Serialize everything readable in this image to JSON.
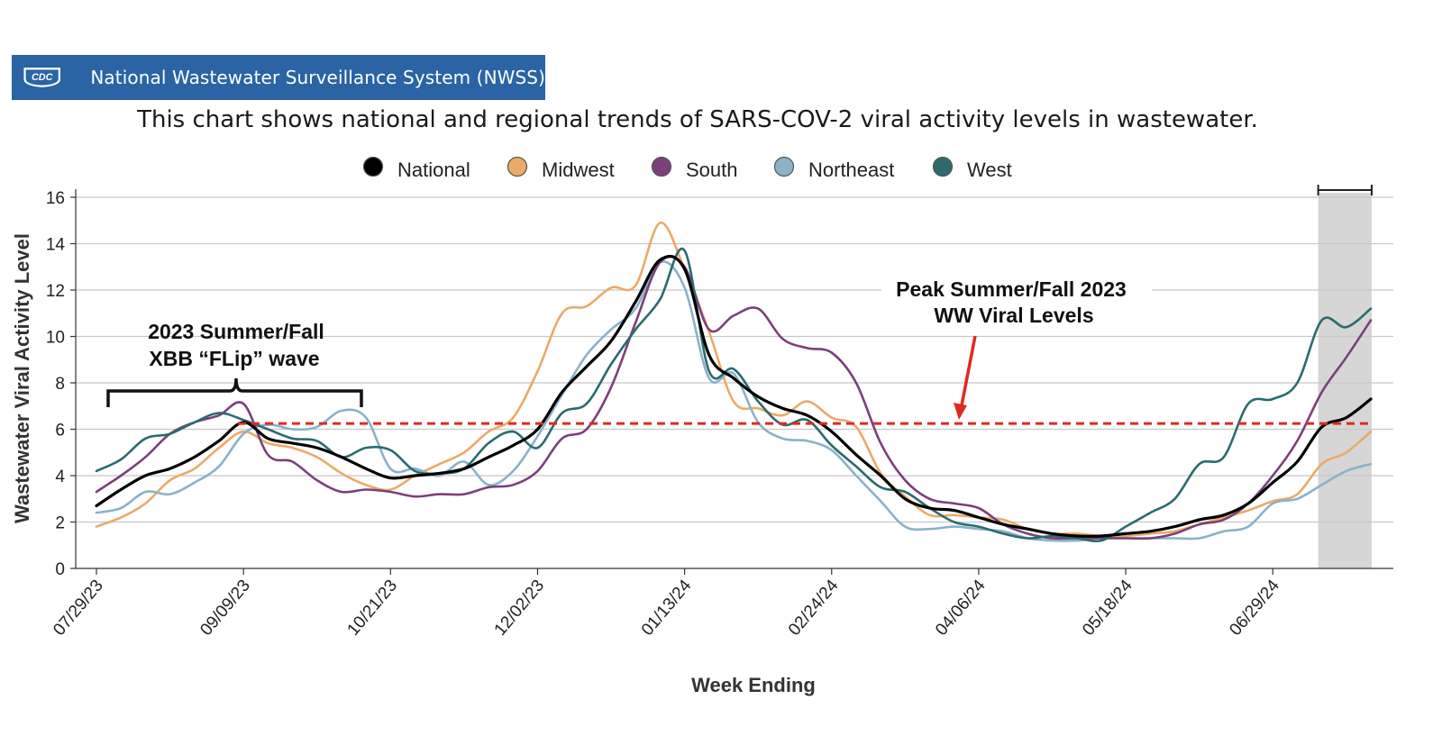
{
  "header": {
    "logo_text": "CDC",
    "banner_title": "National Wastewater Surveillance System (NWSS)",
    "subtitle": "This chart shows national and regional trends of SARS-COV-2 viral activity levels in wastewater."
  },
  "colors": {
    "banner": "#2a64a4",
    "threshold": "#e02a20",
    "shade": "#d6d6d6"
  },
  "chart_data": {
    "type": "line",
    "xlabel": "Week Ending",
    "ylabel": "Wastewater Viral Activity Level",
    "ylim": [
      0,
      16
    ],
    "yticks": [
      0,
      2,
      4,
      6,
      8,
      10,
      12,
      14,
      16
    ],
    "x_tick_labels": [
      "07/29/23",
      "09/09/23",
      "10/21/23",
      "12/02/23",
      "01/13/24",
      "02/24/24",
      "04/06/24",
      "05/18/24",
      "06/29/24"
    ],
    "x_dates": [
      "07/29/23",
      "08/05/23",
      "08/12/23",
      "08/19/23",
      "08/26/23",
      "09/02/23",
      "09/09/23",
      "09/16/23",
      "09/23/23",
      "09/30/23",
      "10/07/23",
      "10/14/23",
      "10/21/23",
      "10/28/23",
      "11/04/23",
      "11/11/23",
      "11/18/23",
      "11/25/23",
      "12/02/23",
      "12/09/23",
      "12/16/23",
      "12/23/23",
      "12/30/23",
      "01/06/24",
      "01/13/24",
      "01/20/24",
      "01/27/24",
      "02/03/24",
      "02/10/24",
      "02/17/24",
      "02/24/24",
      "03/02/24",
      "03/09/24",
      "03/16/24",
      "03/23/24",
      "03/30/24",
      "04/06/24",
      "04/13/24",
      "04/20/24",
      "04/27/24",
      "05/04/24",
      "05/11/24",
      "05/18/24",
      "05/25/24",
      "06/01/24",
      "06/08/24",
      "06/15/24",
      "06/22/24",
      "06/29/24",
      "07/06/24",
      "07/13/24",
      "07/20/24",
      "07/27/24"
    ],
    "grid": true,
    "legend_position": "top-center",
    "series": [
      {
        "name": "National",
        "color": "#000000",
        "values": [
          2.7,
          3.4,
          4.0,
          4.3,
          4.8,
          5.5,
          6.3,
          5.6,
          5.4,
          5.2,
          4.8,
          4.3,
          3.9,
          4.0,
          4.1,
          4.3,
          4.8,
          5.3,
          6.0,
          7.6,
          8.7,
          9.8,
          11.5,
          13.3,
          12.9,
          9.2,
          8.2,
          7.4,
          6.9,
          6.6,
          5.9,
          4.9,
          4.0,
          3.0,
          2.6,
          2.5,
          2.2,
          1.9,
          1.7,
          1.5,
          1.4,
          1.4,
          1.5,
          1.6,
          1.8,
          2.1,
          2.3,
          2.8,
          3.7,
          4.6,
          6.1,
          6.5,
          7.3
        ]
      },
      {
        "name": "Midwest",
        "color": "#eca968",
        "values": [
          1.8,
          2.2,
          2.8,
          3.8,
          4.3,
          5.2,
          5.9,
          5.4,
          5.2,
          4.8,
          4.1,
          3.6,
          3.4,
          4.0,
          4.5,
          5.0,
          5.9,
          6.5,
          8.5,
          11.0,
          11.3,
          12.1,
          12.2,
          14.9,
          12.9,
          10.2,
          7.2,
          6.9,
          6.6,
          7.2,
          6.5,
          6.1,
          4.1,
          3.1,
          2.3,
          2.3,
          2.2,
          2.1,
          1.7,
          1.5,
          1.5,
          1.4,
          1.4,
          1.5,
          1.6,
          1.9,
          2.2,
          2.5,
          2.9,
          3.2,
          4.5,
          5.0,
          5.9
        ]
      },
      {
        "name": "South",
        "color": "#7b4079",
        "values": [
          3.3,
          4.0,
          4.8,
          5.8,
          6.3,
          6.6,
          7.1,
          4.9,
          4.6,
          3.8,
          3.3,
          3.4,
          3.3,
          3.1,
          3.2,
          3.2,
          3.5,
          3.6,
          4.2,
          5.6,
          6.0,
          7.8,
          10.6,
          13.2,
          13.0,
          10.3,
          10.9,
          11.2,
          9.9,
          9.5,
          9.3,
          8.0,
          5.4,
          3.8,
          3.0,
          2.8,
          2.6,
          1.9,
          1.5,
          1.3,
          1.3,
          1.3,
          1.3,
          1.3,
          1.5,
          1.9,
          2.1,
          2.8,
          4.0,
          5.5,
          7.6,
          9.1,
          10.7
        ]
      },
      {
        "name": "Northeast",
        "color": "#8ab2c8",
        "values": [
          2.4,
          2.6,
          3.3,
          3.2,
          3.7,
          4.4,
          5.8,
          6.2,
          6.0,
          6.1,
          6.8,
          6.5,
          4.3,
          4.3,
          4.0,
          4.6,
          3.6,
          4.2,
          5.7,
          7.5,
          9.2,
          10.3,
          11.2,
          13.2,
          12.1,
          8.2,
          8.4,
          6.3,
          5.6,
          5.5,
          5.1,
          4.0,
          2.9,
          1.8,
          1.7,
          1.8,
          1.7,
          1.6,
          1.3,
          1.2,
          1.2,
          1.3,
          1.3,
          1.3,
          1.3,
          1.3,
          1.6,
          1.8,
          2.8,
          3.0,
          3.6,
          4.2,
          4.5
        ]
      },
      {
        "name": "West",
        "color": "#2b6b6e",
        "values": [
          4.2,
          4.7,
          5.6,
          5.8,
          6.3,
          6.7,
          6.4,
          6.0,
          5.6,
          5.5,
          4.8,
          5.2,
          5.1,
          4.2,
          4.1,
          4.3,
          5.4,
          5.9,
          5.2,
          6.7,
          7.1,
          8.8,
          10.3,
          11.6,
          13.7,
          8.5,
          8.6,
          7.2,
          6.2,
          6.4,
          5.3,
          4.4,
          3.5,
          3.3,
          2.6,
          2.0,
          1.8,
          1.5,
          1.3,
          1.4,
          1.3,
          1.2,
          1.8,
          2.4,
          3.0,
          4.5,
          4.8,
          7.1,
          7.3,
          8.0,
          10.7,
          10.4,
          11.2
        ]
      }
    ],
    "threshold": {
      "value": 6.25,
      "style": "dashed"
    },
    "shaded_range": {
      "start": "07/13/24",
      "end": "07/27/24"
    },
    "annotations": {
      "wave_line1": "2023 Summer/Fall",
      "wave_line2": "XBB “FLip” wave",
      "peak_line1": "Peak Summer/Fall 2023",
      "peak_line2": "WW Viral Levels"
    }
  }
}
